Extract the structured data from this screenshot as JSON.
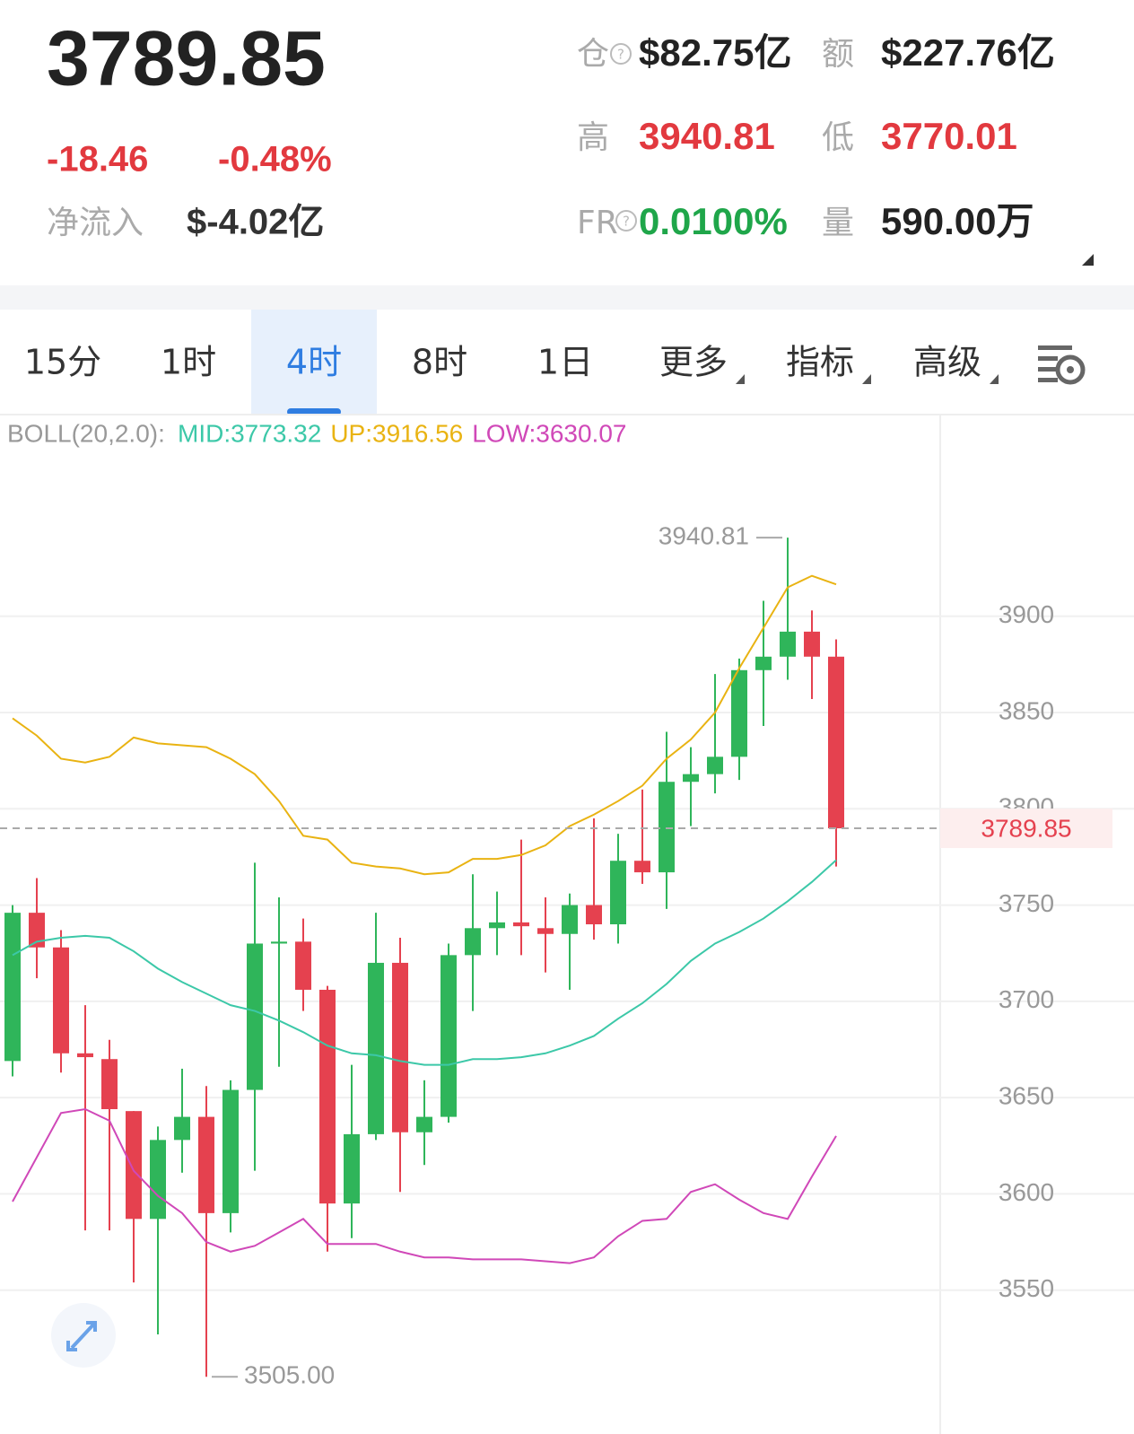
{
  "header": {
    "price": "3789.85",
    "change": "-18.46",
    "change_pct": "-0.48%",
    "net_inflow_label": "净流入",
    "net_inflow": "$-4.02亿",
    "stats": [
      {
        "label": "仓",
        "value": "$82.75亿",
        "color": "#222222"
      },
      {
        "label": "额",
        "value": "$227.76亿",
        "color": "#222222"
      },
      {
        "label": "高",
        "value": "3940.81",
        "color": "#e2393f"
      },
      {
        "label": "低",
        "value": "3770.01",
        "color": "#e2393f"
      },
      {
        "label": "FR",
        "value": "0.0100%",
        "color": "#1fa64a"
      },
      {
        "label": "量",
        "value": "590.00万",
        "color": "#222222"
      }
    ]
  },
  "tabs": {
    "items": [
      "15分",
      "1时",
      "4时",
      "8时",
      "1日",
      "更多",
      "指标",
      "高级"
    ],
    "active": 2
  },
  "chart_data": {
    "type": "candlestick",
    "indicator_label": "BOLL(20,2.0):",
    "up_color": "#2fb55a",
    "down_color": "#e5414f",
    "open": [
      3669,
      3746,
      3728,
      3673,
      3670,
      3643,
      3587,
      3628,
      3640,
      3590,
      3654,
      3730,
      3731,
      3706,
      3595,
      3631,
      3720,
      3632,
      3640,
      3724,
      3738,
      3741,
      3738,
      3735,
      3750,
      3740,
      3773,
      3767,
      3814,
      3818,
      3827,
      3872,
      3879,
      3892,
      3879
    ],
    "high": [
      3750,
      3764,
      3737,
      3698,
      3680,
      3643,
      3635,
      3665,
      3656,
      3659,
      3772,
      3754,
      3743,
      3708,
      3667,
      3746,
      3733,
      3659,
      3730,
      3766,
      3757,
      3784,
      3754,
      3756,
      3795,
      3787,
      3810,
      3840,
      3832,
      3870,
      3878,
      3908,
      3940.81,
      3903,
      3888
    ],
    "low": [
      3661,
      3712,
      3663,
      3581,
      3581,
      3554,
      3527,
      3611,
      3505,
      3580,
      3612,
      3666,
      3695,
      3570,
      3577,
      3628,
      3601,
      3615,
      3637,
      3695,
      3724,
      3724,
      3715,
      3706,
      3732,
      3730,
      3761,
      3748,
      3791,
      3808,
      3815,
      3843,
      3867,
      3857,
      3770.01
    ],
    "close": [
      3746,
      3728,
      3673,
      3671,
      3644,
      3587,
      3628,
      3640,
      3590,
      3654,
      3730,
      3731,
      3706,
      3595,
      3631,
      3720,
      3632,
      3640,
      3724,
      3738,
      3741,
      3739,
      3735,
      3750,
      3740,
      3773,
      3767,
      3814,
      3818,
      3827,
      3872,
      3879,
      3892,
      3879,
      3789.85
    ],
    "series": [
      {
        "name": "MID:3773.32",
        "color": "#3cc8a8",
        "values": [
          3724,
          3731,
          3733,
          3734,
          3733,
          3726,
          3717,
          3710,
          3704,
          3698,
          3695,
          3690,
          3684,
          3677,
          3673,
          3672,
          3669,
          3667,
          3667,
          3670,
          3670,
          3671,
          3673,
          3677,
          3682,
          3691,
          3699,
          3709,
          3721,
          3730,
          3736,
          3743,
          3752,
          3762,
          3773.32
        ]
      },
      {
        "name": "UP:3916.56",
        "color": "#e9b312",
        "values": [
          3847,
          3838,
          3826,
          3824,
          3827,
          3837,
          3834,
          3833,
          3832,
          3826,
          3818,
          3804,
          3786,
          3784,
          3772,
          3770,
          3769,
          3766,
          3767,
          3774,
          3774,
          3776,
          3781,
          3791,
          3797,
          3804,
          3812,
          3826,
          3836,
          3850,
          3873,
          3894,
          3915,
          3921,
          3916.56
        ]
      },
      {
        "name": "LOW:3630.07",
        "color": "#d048b8",
        "values": [
          3596,
          3619,
          3642,
          3644,
          3638,
          3612,
          3599,
          3590,
          3575,
          3570,
          3573,
          3580,
          3587,
          3574,
          3574,
          3574,
          3570,
          3567,
          3567,
          3566,
          3566,
          3566,
          3565,
          3564,
          3567,
          3578,
          3586,
          3587,
          3601,
          3605,
          3597,
          3590,
          3587,
          3609,
          3630.07
        ]
      }
    ],
    "ylim": [
      3493,
      4001
    ],
    "yticks": [
      3550,
      3600,
      3650,
      3700,
      3750,
      3800,
      3850,
      3900
    ],
    "grid": true,
    "max_marker": {
      "value": 3940.81,
      "label": "3940.81"
    },
    "min_marker": {
      "value": 3505,
      "label": "3505.00"
    },
    "last_price": {
      "value": 3789.85,
      "label": "3789.85"
    }
  }
}
